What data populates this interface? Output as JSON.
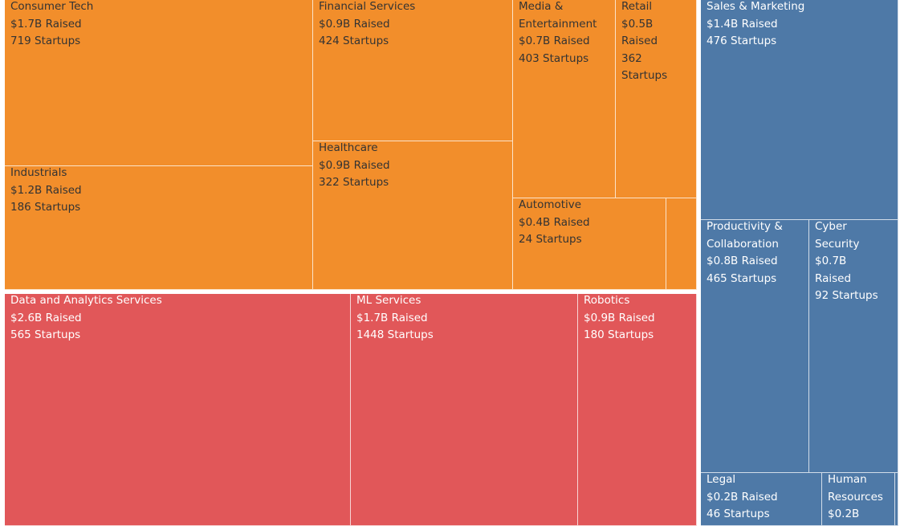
{
  "chart_data": {
    "type": "treemap",
    "title": "",
    "size_measure": "Raised ($B)",
    "label_format": [
      "{name}",
      "${raised}B Raised",
      "{startups} Startups"
    ],
    "groups": [
      {
        "name": "orange-group",
        "color": "#f28e2b",
        "text_color": "#333333",
        "items": [
          {
            "name": "Consumer Tech",
            "raised": "1.7",
            "startups": "719"
          },
          {
            "name": "Industrials",
            "raised": "1.2",
            "startups": "186"
          },
          {
            "name": "Financial Services",
            "raised": "0.9",
            "startups": "424"
          },
          {
            "name": "Healthcare",
            "raised": "0.9",
            "startups": "322"
          },
          {
            "name": "Media & Entertainment",
            "raised": "0.7",
            "startups": "403"
          },
          {
            "name": "Retail",
            "raised": "0.5",
            "startups": "362"
          },
          {
            "name": "Automotive",
            "raised": "0.4",
            "startups": "24"
          },
          {
            "name": "",
            "raised": "",
            "startups": ""
          }
        ]
      },
      {
        "name": "red-group",
        "color": "#e15759",
        "text_color": "#ffffff",
        "items": [
          {
            "name": "Data and Analytics Services",
            "raised": "2.6",
            "startups": "565"
          },
          {
            "name": "ML Services",
            "raised": "1.7",
            "startups": "1448"
          },
          {
            "name": "Robotics",
            "raised": "0.9",
            "startups": "180"
          }
        ]
      },
      {
        "name": "blue-group",
        "color": "#4e79a7",
        "text_color": "#ffffff",
        "items": [
          {
            "name": "Sales & Marketing",
            "raised": "1.4",
            "startups": "476"
          },
          {
            "name": "Productivity & Collaboration",
            "raised": "0.8",
            "startups": "465"
          },
          {
            "name": "Cyber Security",
            "raised": "0.7",
            "startups": "92"
          },
          {
            "name": "Legal",
            "raised": "0.2",
            "startups": "46"
          },
          {
            "name": "Human Resources",
            "raised": "0.2",
            "startups": ""
          },
          {
            "name": "",
            "raised": "",
            "startups": ""
          }
        ]
      }
    ]
  }
}
